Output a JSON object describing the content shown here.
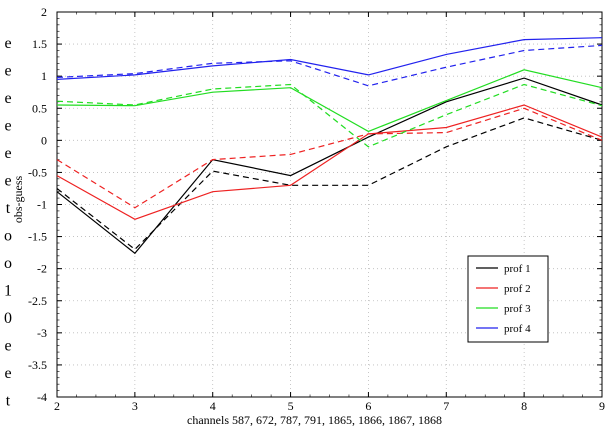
{
  "left_text": [
    "e",
    "e",
    "e",
    "e",
    "e",
    "e",
    "t",
    "o",
    "o",
    "1",
    "0",
    "e",
    "e",
    "t"
  ],
  "chart_data": {
    "type": "line",
    "title": "",
    "xlabel": "channels 587,  672, 787, 791, 1865, 1866, 1867, 1868",
    "ylabel": "obs-guess",
    "xlim": [
      2,
      9
    ],
    "ylim": [
      -4,
      2
    ],
    "x_ticks": [
      2,
      3,
      4,
      5,
      6,
      7,
      8,
      9
    ],
    "y_ticks": [
      2,
      1.5,
      1,
      0.5,
      0,
      -0.5,
      -1,
      -1.5,
      -2,
      -2.5,
      -3,
      -3.5,
      -4
    ],
    "grid": true,
    "legend_position": "lower-right",
    "x": [
      2,
      3,
      4,
      5,
      6,
      7,
      8,
      9
    ],
    "series": [
      {
        "name": "prof 1",
        "color": "#000000",
        "style": "solid",
        "values": [
          -0.8,
          -1.76,
          -0.3,
          -0.55,
          0.05,
          0.6,
          0.97,
          0.55
        ]
      },
      {
        "name": "prof 1",
        "color": "#000000",
        "style": "dashed",
        "values": [
          -0.75,
          -1.7,
          -0.48,
          -0.7,
          -0.7,
          -0.1,
          0.35,
          0.0
        ]
      },
      {
        "name": "prof 2",
        "color": "#ee2222",
        "style": "solid",
        "values": [
          -0.55,
          -1.23,
          -0.8,
          -0.7,
          0.1,
          0.2,
          0.55,
          0.05
        ]
      },
      {
        "name": "prof 2",
        "color": "#ee2222",
        "style": "dashed",
        "values": [
          -0.3,
          -1.05,
          -0.3,
          -0.22,
          0.1,
          0.12,
          0.5,
          0.0
        ]
      },
      {
        "name": "prof 3",
        "color": "#22dd22",
        "style": "solid",
        "values": [
          0.55,
          0.54,
          0.75,
          0.82,
          0.14,
          0.62,
          1.1,
          0.82
        ]
      },
      {
        "name": "prof 3",
        "color": "#22dd22",
        "style": "dashed",
        "values": [
          0.61,
          0.55,
          0.8,
          0.87,
          -0.1,
          0.4,
          0.87,
          0.54
        ]
      },
      {
        "name": "prof 4",
        "color": "#2222ee",
        "style": "solid",
        "values": [
          0.95,
          1.02,
          1.16,
          1.26,
          1.02,
          1.34,
          1.57,
          1.6
        ]
      },
      {
        "name": "prof 4",
        "color": "#2222ee",
        "style": "dashed",
        "values": [
          0.98,
          1.04,
          1.2,
          1.24,
          0.85,
          1.14,
          1.4,
          1.48
        ]
      }
    ],
    "legend": [
      {
        "label": "prof 1",
        "color": "#000000"
      },
      {
        "label": "prof 2",
        "color": "#ee2222"
      },
      {
        "label": "prof 3",
        "color": "#22dd22"
      },
      {
        "label": "prof 4",
        "color": "#2222ee"
      }
    ]
  }
}
